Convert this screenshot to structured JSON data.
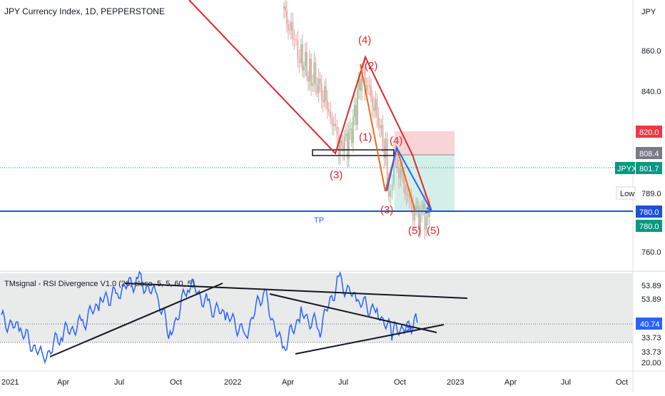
{
  "header": {
    "symbol_title": "JPY Currency Index, 1D, PEPPERSTONE"
  },
  "price_axis": {
    "unit_label": "JPY",
    "ticks": [
      "860.0",
      "840.0",
      "760.0"
    ]
  },
  "price_tags": {
    "stop": "820.0",
    "entry": "808.4",
    "symbol_short": "JPYX",
    "last": "801.7",
    "low_label": "Low",
    "low_value": "789.0",
    "tp1": "780.0",
    "tp2": "780.0"
  },
  "annotations": {
    "tp": "TP",
    "wave_labels": [
      "(4)",
      "(2)",
      "(1)",
      "(4)",
      "(3)",
      "(3)",
      "(5)",
      "(5)"
    ]
  },
  "indicator": {
    "title": "TMsignal - RSI Divergence V1.0 (26, close, 5, 5, 60, 5)",
    "axis_ticks": [
      "53.89",
      "53.89",
      "40.74",
      "33.73",
      "33.73",
      "20.00"
    ]
  },
  "time_axis": {
    "labels": [
      "2021",
      "Apr",
      "Jul",
      "Oct",
      "2022",
      "Apr",
      "Jul",
      "Oct",
      "2023",
      "Apr",
      "Jul",
      "Oct"
    ]
  },
  "colors": {
    "wave_red": "#e0272d",
    "wave_orange": "#f06a17",
    "rsi_blue": "#2962ff",
    "candle_up": "#8fc9a0",
    "candle_down": "#f2a0a0",
    "tp_line": "#1e4fd8",
    "stop_zone": "#f9d4d6",
    "target_zone": "#d3efe8",
    "tag_red": "#f23645",
    "tag_gray": "#787b86",
    "tag_green": "#089981",
    "indicator_bg": "#e8ebea"
  },
  "chart_data": [
    {
      "type": "candlestick",
      "title": "JPY Currency Index, 1D, PEPPERSTONE",
      "ylabel": "JPY",
      "x": [
        "2022-04-01",
        "2022-04-15",
        "2022-05-01",
        "2022-05-15",
        "2022-06-01",
        "2022-06-15",
        "2022-07-01",
        "2022-07-15",
        "2022-07-29",
        "2022-08-05",
        "2022-08-15",
        "2022-09-01",
        "2022-09-15",
        "2022-09-20",
        "2022-10-01",
        "2022-10-12",
        "2022-10-21",
        "2022-11-01",
        "2022-11-10",
        "2022-11-25"
      ],
      "close": [
        880,
        868,
        855,
        849,
        842,
        832,
        815,
        815,
        830,
        848,
        844,
        828,
        810,
        792,
        808,
        798,
        788,
        781,
        780,
        780
      ],
      "ylim": [
        755,
        880
      ],
      "levels": {
        "stop": 820.0,
        "entry": 808.4,
        "last": 801.7,
        "low": 789.0,
        "take_profit": 780.0
      },
      "elliott_waves": [
        {
          "label": "(3)",
          "price": 810.5
        },
        {
          "label": "(4)",
          "price": 857.0
        },
        {
          "label": "(2)",
          "price": 857.0
        },
        {
          "label": "(1)",
          "price": 815.0
        },
        {
          "label": "(4)",
          "price": 809.0
        },
        {
          "label": "(3)",
          "price": 793.0
        },
        {
          "label": "(5)",
          "price": 780.0
        },
        {
          "label": "(5)",
          "price": 780.0
        }
      ]
    },
    {
      "type": "line",
      "title": "TMsignal - RSI Divergence V1.0 (26, close, 5, 5, 60, 5)",
      "x": [
        "2021-01-01",
        "2021-02-01",
        "2021-03-10",
        "2021-04-10",
        "2021-05-10",
        "2021-06-10",
        "2021-07-10",
        "2021-08-10",
        "2021-09-10",
        "2021-10-01",
        "2021-11-01",
        "2021-12-01",
        "2022-01-01",
        "2022-02-01",
        "2022-03-01",
        "2022-04-01",
        "2022-05-01",
        "2022-06-01",
        "2022-07-01",
        "2022-08-01",
        "2022-09-01",
        "2022-09-25",
        "2022-10-20",
        "2022-11-05"
      ],
      "values": [
        42.0,
        38.0,
        28.0,
        37.0,
        40.0,
        48.0,
        52.0,
        56.0,
        50.0,
        36.0,
        55.0,
        47.0,
        43.0,
        37.0,
        52.0,
        31.0,
        44.0,
        39.0,
        56.0,
        48.0,
        45.0,
        37.0,
        40.0,
        40.74
      ],
      "ylim": [
        20.0,
        58.0
      ],
      "levels": [
        53.89,
        40.74,
        33.73,
        20.0
      ]
    }
  ]
}
